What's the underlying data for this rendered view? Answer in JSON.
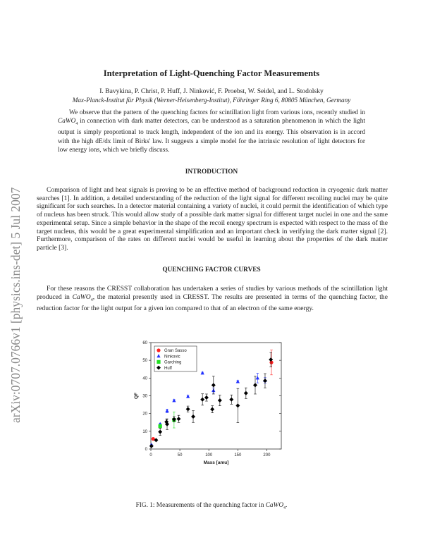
{
  "sidebar_stamp": "arXiv:0707.0766v1  [physics.ins-det]  5 Jul 2007",
  "title": "Interpretation of Light-Quenching Factor Measurements",
  "authors": "I. Bavykina, P. Christ, P. Huff, J. Ninković, F. Proebst, W. Seidel, and L. Stodolsky",
  "affiliation": "Max-Planck-Institut für Physik (Werner-Heisenberg-Institut), Föhringer Ring 6, 80805 München, Germany",
  "abstract": {
    "part1": "We observe that the pattern of the quenching factors for scintillation light from various ions, recently studied in ",
    "formula": "CaWO",
    "sub": "4",
    "part2": " in connection with dark matter detectors, can be understood as a saturation phenomenon in which the light output is simply proportional to track length, independent of the ion and its energy. This observation is in accord with the high dE/dx limit of Birks' law. It suggests a simple model for the intrinsic resolution of light detectors for low energy ions, which we briefly discuss."
  },
  "sections": {
    "intro": {
      "heading": "INTRODUCTION",
      "text": "Comparison of light and heat signals is proving to be an effective method of background reduction in cryogenic dark matter searches [1]. In addition, a detailed understanding of the reduction of the light signal for different recoiling nuclei may be quite significant for such searches. In a detector material containing a variety of nuclei, it could permit the identification of which type of nucleus has been struck. This would allow study of a possible dark matter signal for different target nuclei in one and the same experimental setup. Since a simple behavior in the shape of the recoil energy spectrum is expected with respect to the mass of the target nucleus, this would be a great experimental simplification and an important check in verifying the dark matter signal [2]. Furthermore, comparison of the rates on different nuclei would be useful in learning about the properties of the dark matter particle [3]."
    },
    "qfc": {
      "heading": "QUENCHING FACTOR CURVES",
      "part1": "For these reasons the CRESST collaboration has undertaken a series of studies by various methods of the scintillation light produced in ",
      "formula": "CaWO",
      "sub": "4",
      "part2": ", the material presently used in CRESST. The results are presented in terms of the quenching factor, the reduction factor for the light output for a given ion compared to that of an electron of the same energy."
    }
  },
  "caption": {
    "part1": "FIG. 1: Measurements of the quenching factor in ",
    "formula": "CaWO",
    "sub": "4",
    "part2": "."
  },
  "chart_data": {
    "type": "scatter",
    "xlabel": "Mass [amu]",
    "ylabel": "QF",
    "xlim": [
      0,
      225
    ],
    "ylim": [
      0,
      60
    ],
    "xticks": [
      0,
      50,
      100,
      150,
      200
    ],
    "yticks": [
      0,
      10,
      20,
      30,
      40,
      50,
      60
    ],
    "grid": false,
    "legend": "top-left",
    "series": [
      {
        "name": "Gran Sasso",
        "color": "#ff2020",
        "marker": "circle",
        "points": [
          {
            "x": 4,
            "y": 5.7,
            "err": 0.4
          },
          {
            "x": 208,
            "y": 48.8,
            "err": 7
          }
        ]
      },
      {
        "name": "Ninkovic",
        "color": "#2030ff",
        "marker": "triangle",
        "points": [
          {
            "x": 1,
            "y": 2.3,
            "err": 0.3
          },
          {
            "x": 16,
            "y": 14,
            "err": 0.6
          },
          {
            "x": 28,
            "y": 21.5,
            "err": 1
          },
          {
            "x": 40,
            "y": 27.3,
            "err": 0.6
          },
          {
            "x": 64,
            "y": 29.6,
            "err": 0.7
          },
          {
            "x": 89,
            "y": 42.8,
            "err": 0.5
          },
          {
            "x": 108,
            "y": 33,
            "err": 1.5
          },
          {
            "x": 150,
            "y": 38,
            "err": 0.6
          },
          {
            "x": 184,
            "y": 40,
            "err": 2.7
          },
          {
            "x": 197,
            "y": 38.7,
            "err": 1.5
          }
        ]
      },
      {
        "name": "Garching",
        "color": "#20e020",
        "marker": "square",
        "points": [
          {
            "x": 16,
            "y": 12.9,
            "err": 1
          },
          {
            "x": 40,
            "y": 16.4,
            "err": 4.5
          }
        ]
      },
      {
        "name": "Huff",
        "color": "#000000",
        "marker": "diamond",
        "points": [
          {
            "x": 1,
            "y": 1.7,
            "err": 0.4
          },
          {
            "x": 9,
            "y": 5,
            "err": 0.4
          },
          {
            "x": 16,
            "y": 9.7,
            "err": 2
          },
          {
            "x": 27,
            "y": 15.3,
            "err": 1.5
          },
          {
            "x": 28,
            "y": 14,
            "err": 3
          },
          {
            "x": 40,
            "y": 16.8,
            "err": 1.5
          },
          {
            "x": 48,
            "y": 17,
            "err": 2
          },
          {
            "x": 64,
            "y": 22.5,
            "err": 1.7
          },
          {
            "x": 73,
            "y": 18.3,
            "err": 3.3
          },
          {
            "x": 89,
            "y": 27.9,
            "err": 3.2
          },
          {
            "x": 96,
            "y": 29,
            "err": 2
          },
          {
            "x": 106,
            "y": 22.4,
            "err": 2
          },
          {
            "x": 108,
            "y": 36,
            "err": 5
          },
          {
            "x": 119,
            "y": 27.4,
            "err": 3
          },
          {
            "x": 139,
            "y": 27.9,
            "err": 2.6
          },
          {
            "x": 150,
            "y": 24.5,
            "err": 9.6
          },
          {
            "x": 164,
            "y": 31.5,
            "err": 3
          },
          {
            "x": 180,
            "y": 36,
            "err": 5
          },
          {
            "x": 197,
            "y": 38.5,
            "err": 4
          },
          {
            "x": 207,
            "y": 50.4,
            "err": 4
          }
        ]
      }
    ]
  }
}
